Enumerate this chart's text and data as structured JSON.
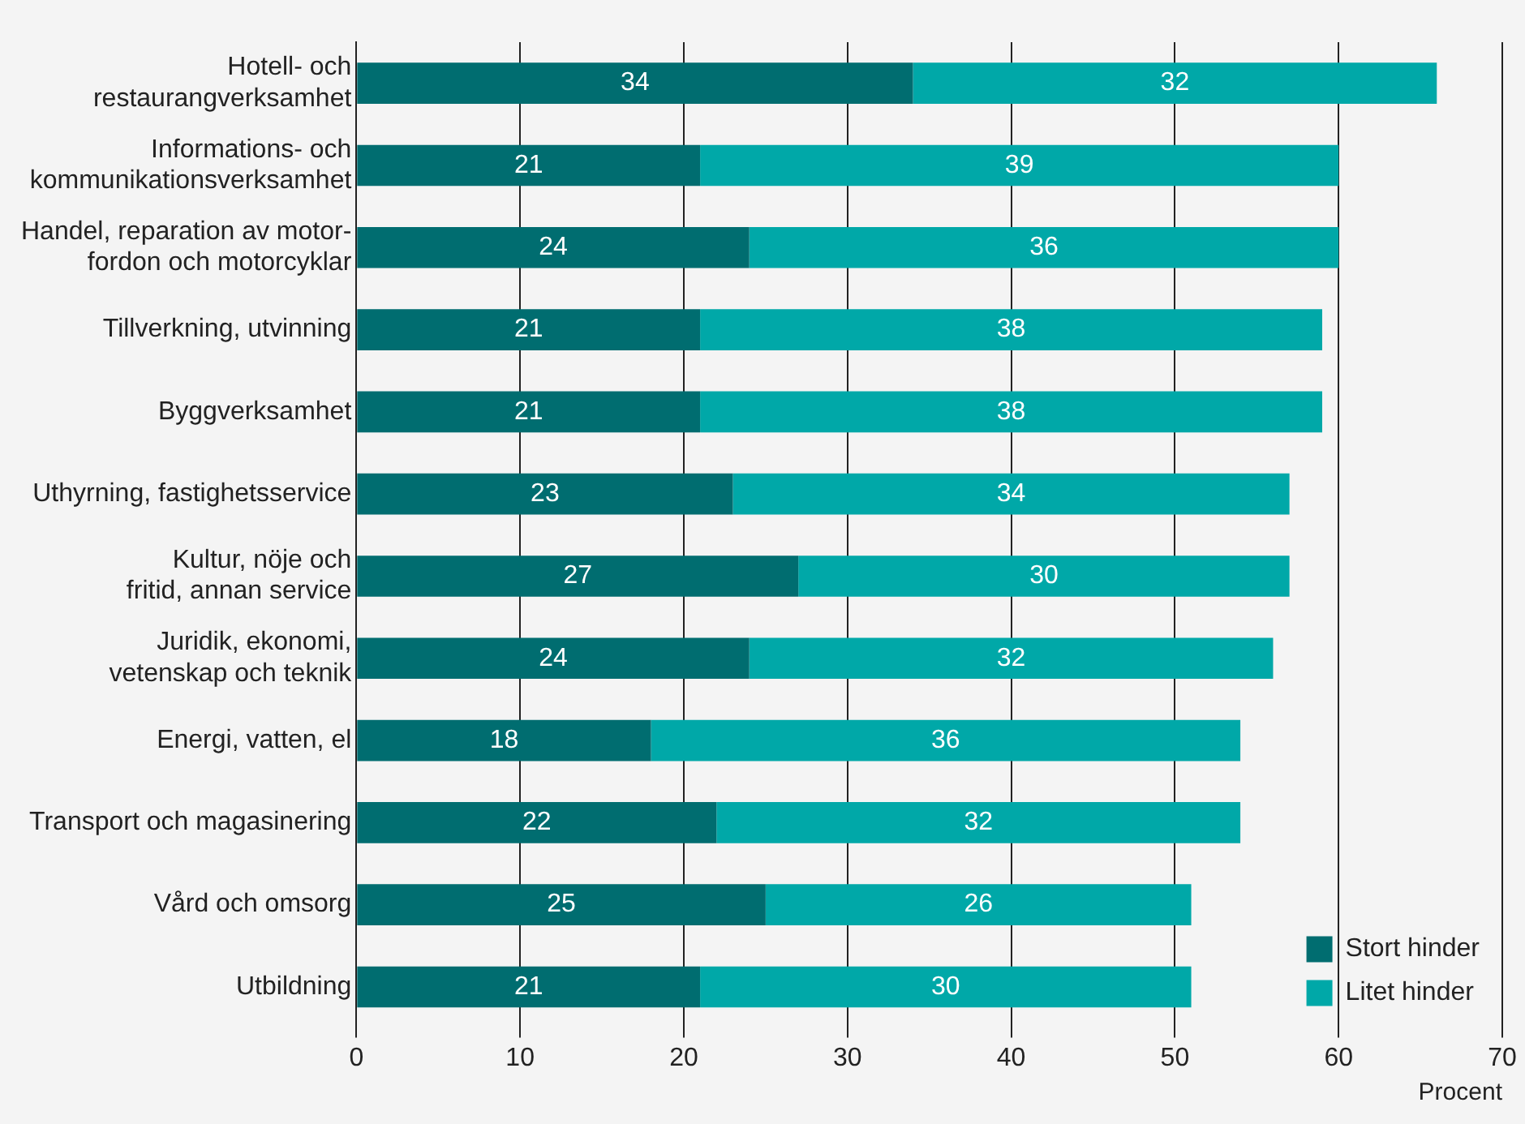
{
  "chart_data": {
    "type": "bar",
    "orientation": "horizontal",
    "stacked": true,
    "categories": [
      "Hotell- och\nrestaurangverksamhet",
      "Informations- och\nkommunikationsverksamhet",
      "Handel, reparation av motor-\nfordon och motorcyklar",
      "Tillverkning, utvinning",
      "Byggverksamhet",
      "Uthyrning, fastighetsservice",
      "Kultur, nöje och\nfritid, annan service",
      "Juridik, ekonomi,\nvetenskap och teknik",
      "Energi, vatten, el",
      "Transport och magasinering",
      "Vård och omsorg",
      "Utbildning"
    ],
    "series": [
      {
        "name": "Stort hinder",
        "color": "#006d70",
        "values": [
          34,
          21,
          24,
          21,
          21,
          23,
          27,
          24,
          18,
          22,
          25,
          21
        ]
      },
      {
        "name": "Litet hinder",
        "color": "#00a8a8",
        "values": [
          32,
          39,
          36,
          38,
          38,
          34,
          30,
          32,
          36,
          32,
          26,
          30
        ]
      }
    ],
    "xlabel": "Procent",
    "xlim": [
      0,
      70
    ],
    "xticks": [
      0,
      10,
      20,
      30,
      40,
      50,
      60,
      70
    ],
    "grid": "x",
    "legend": "bottom right",
    "data_labels": true
  }
}
